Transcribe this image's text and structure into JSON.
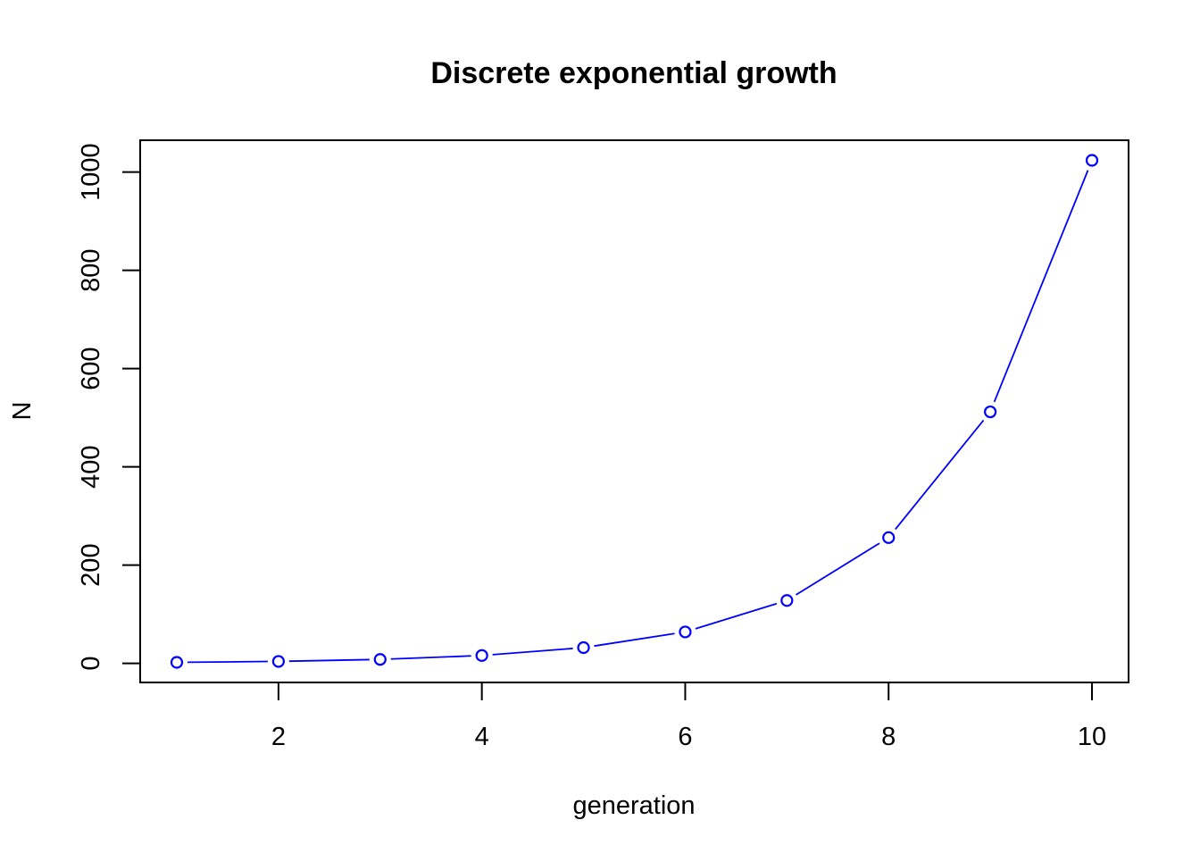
{
  "chart_data": {
    "type": "line",
    "title": "Discrete exponential growth",
    "xlabel": "generation",
    "ylabel": "N",
    "x": [
      1,
      2,
      3,
      4,
      5,
      6,
      7,
      8,
      9,
      10
    ],
    "series": [
      {
        "values": [
          2,
          4,
          8,
          16,
          32,
          64,
          128,
          256,
          512,
          1024
        ],
        "color": "#0000ff",
        "marker": "open-circle",
        "line": "solid"
      }
    ],
    "xticks": [
      2,
      4,
      6,
      8,
      10
    ],
    "xtick_labels": [
      "2",
      "4",
      "6",
      "8",
      "10"
    ],
    "yticks": [
      0,
      200,
      400,
      600,
      800,
      1000
    ],
    "ytick_labels": [
      "0",
      "200",
      "400",
      "600",
      "800",
      "1000"
    ],
    "xlim": [
      0.64,
      10.36
    ],
    "ylim": [
      -38.88,
      1064.88
    ],
    "grid": false,
    "legend": "none"
  }
}
